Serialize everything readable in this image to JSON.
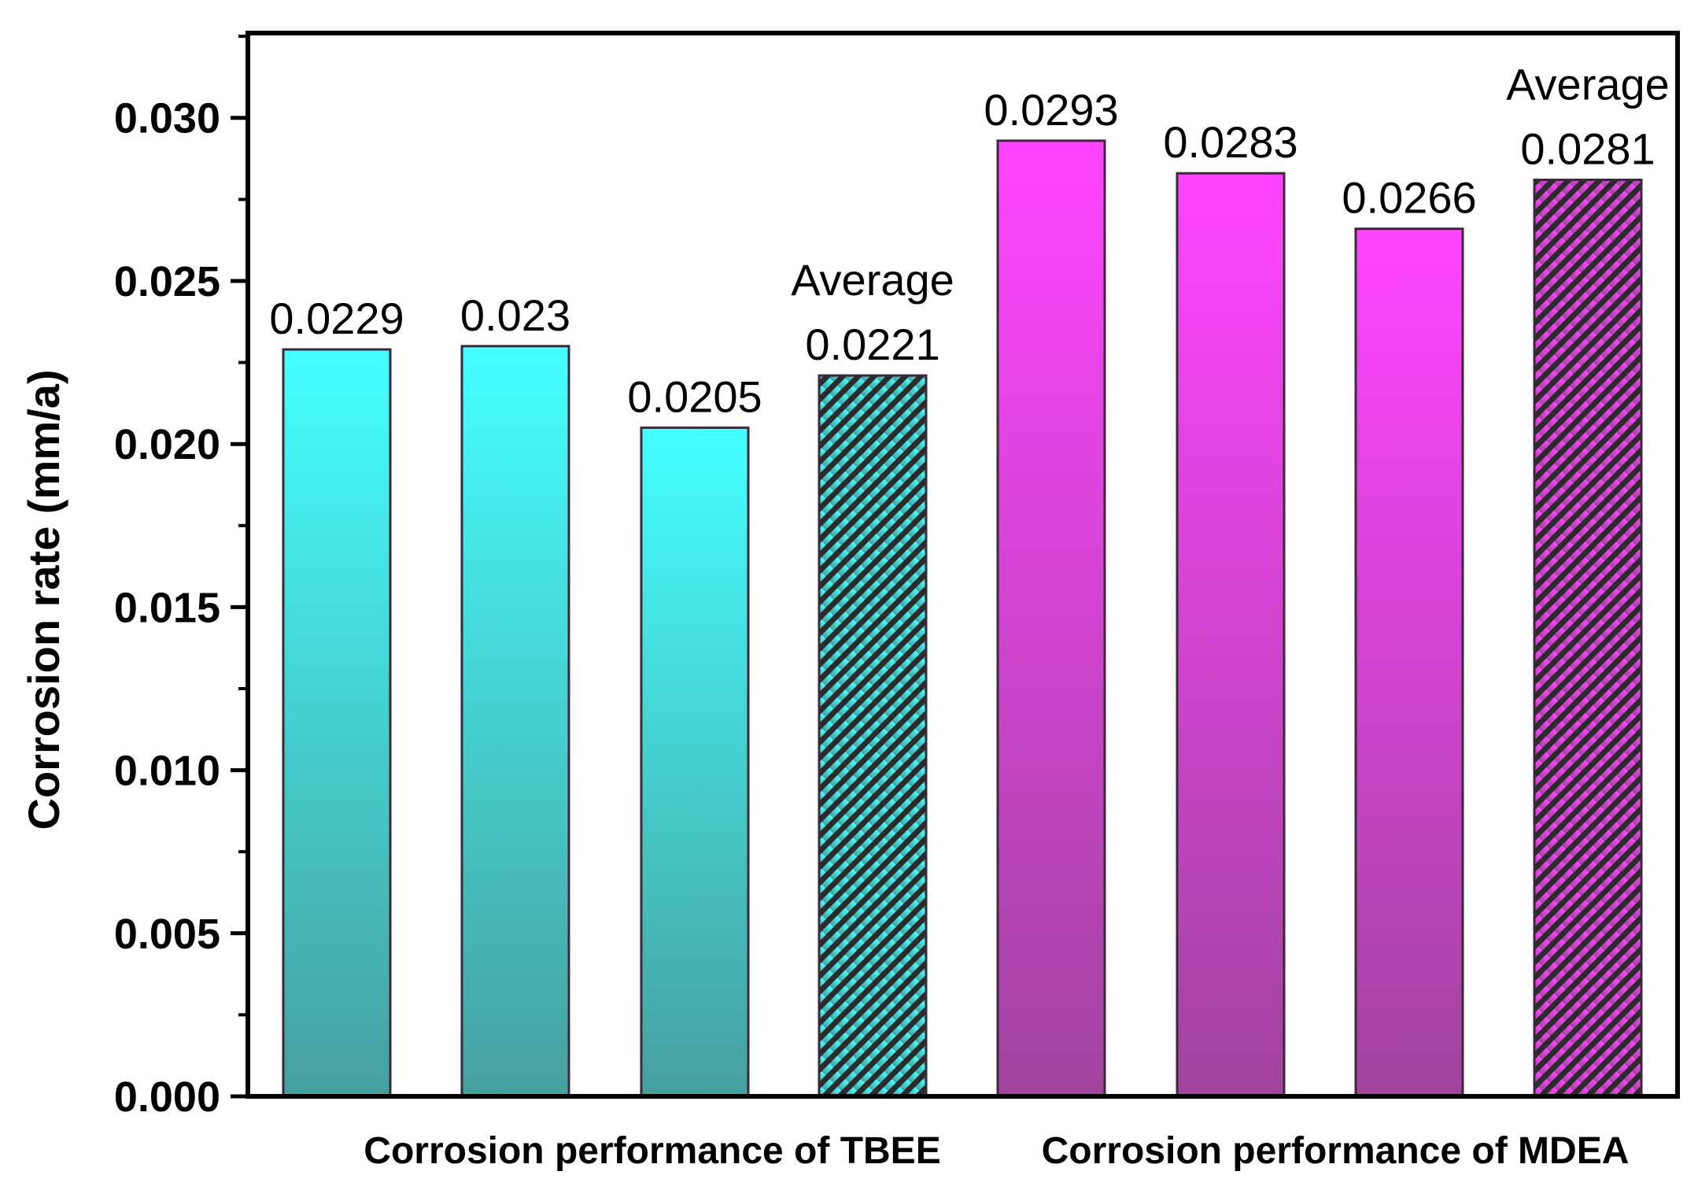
{
  "chart_data": {
    "type": "bar",
    "title": "",
    "ylabel": "Corrosion rate (mm/a)",
    "xlabel": "",
    "ylim": [
      0,
      0.0326
    ],
    "yticks": [
      "0.000",
      "0.005",
      "0.010",
      "0.015",
      "0.020",
      "0.025",
      "0.030"
    ],
    "ytick_values": [
      0,
      0.005,
      0.01,
      0.015,
      0.02,
      0.025,
      0.03
    ],
    "grid": false,
    "groups": [
      {
        "name": "Corrosion performance of TBEE",
        "color_top": "#44FFFF",
        "color_bottom": "#45A09E",
        "bars": [
          {
            "value": 0.0229,
            "label": "0.0229",
            "note": "",
            "hatched": false
          },
          {
            "value": 0.023,
            "label": "0.023",
            "note": "",
            "hatched": false
          },
          {
            "value": 0.0205,
            "label": "0.0205",
            "note": "",
            "hatched": false
          },
          {
            "value": 0.0221,
            "label": "0.0221",
            "note": "Average",
            "hatched": true
          }
        ]
      },
      {
        "name": "Corrosion performance of MDEA",
        "color_top": "#FF44FF",
        "color_bottom": "#A0449E",
        "bars": [
          {
            "value": 0.0293,
            "label": "0.0293",
            "note": "",
            "hatched": false
          },
          {
            "value": 0.0283,
            "label": "0.0283",
            "note": "",
            "hatched": false
          },
          {
            "value": 0.0266,
            "label": "0.0266",
            "note": "",
            "hatched": false
          },
          {
            "value": 0.0281,
            "label": "0.0281",
            "note": "Average",
            "hatched": true
          }
        ]
      }
    ]
  }
}
